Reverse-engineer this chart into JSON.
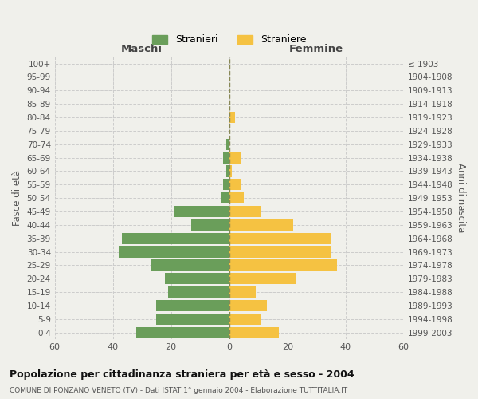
{
  "age_groups": [
    "0-4",
    "5-9",
    "10-14",
    "15-19",
    "20-24",
    "25-29",
    "30-34",
    "35-39",
    "40-44",
    "45-49",
    "50-54",
    "55-59",
    "60-64",
    "65-69",
    "70-74",
    "75-79",
    "80-84",
    "85-89",
    "90-94",
    "95-99",
    "100+"
  ],
  "birth_years": [
    "1999-2003",
    "1994-1998",
    "1989-1993",
    "1984-1988",
    "1979-1983",
    "1974-1978",
    "1969-1973",
    "1964-1968",
    "1959-1963",
    "1954-1958",
    "1949-1953",
    "1944-1948",
    "1939-1943",
    "1934-1938",
    "1929-1933",
    "1924-1928",
    "1919-1923",
    "1914-1918",
    "1909-1913",
    "1904-1908",
    "≤ 1903"
  ],
  "males": [
    32,
    25,
    25,
    21,
    22,
    27,
    38,
    37,
    13,
    19,
    3,
    2,
    1,
    2,
    1,
    0,
    0,
    0,
    0,
    0,
    0
  ],
  "females": [
    17,
    11,
    13,
    9,
    23,
    37,
    35,
    35,
    22,
    11,
    5,
    4,
    1,
    4,
    0,
    0,
    2,
    0,
    0,
    0,
    0
  ],
  "male_color": "#6a9e5a",
  "female_color": "#f5c242",
  "background_color": "#f0f0eb",
  "grid_color": "#cccccc",
  "title": "Popolazione per cittadinanza straniera per età e sesso - 2004",
  "subtitle": "COMUNE DI PONZANO VENETO (TV) - Dati ISTAT 1° gennaio 2004 - Elaborazione TUTTITALIA.IT",
  "xlabel_left": "Maschi",
  "xlabel_right": "Femmine",
  "ylabel_left": "Fasce di età",
  "ylabel_right": "Anni di nascita",
  "legend_male": "Stranieri",
  "legend_female": "Straniere",
  "xlim": 60,
  "bar_height": 0.85
}
